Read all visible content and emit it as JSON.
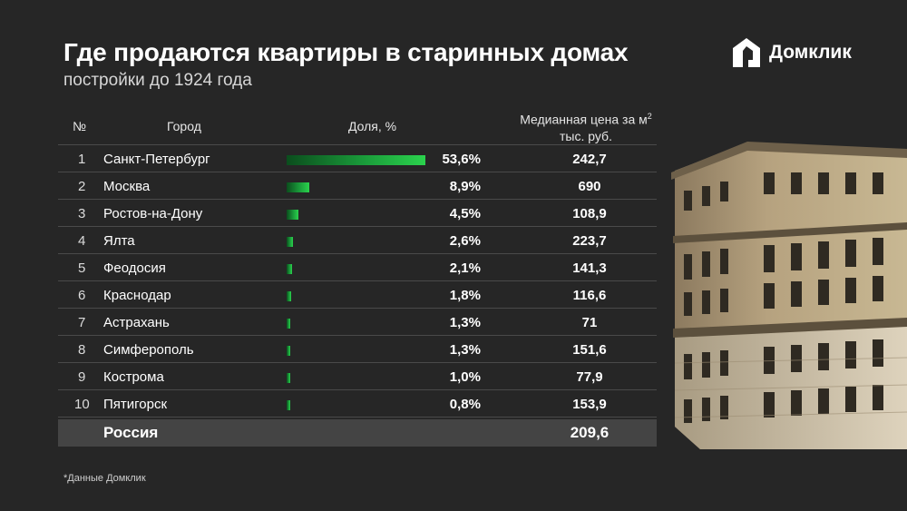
{
  "header": {
    "title": "Где продаются квартиры в старинных домах",
    "subtitle": "постройки до 1924 года"
  },
  "logo": {
    "text": "Домклик"
  },
  "table": {
    "columns": {
      "num": "№",
      "city": "Город",
      "share": "Доля, %",
      "price_line1": "Медианная цена за м",
      "price_sup": "2",
      "price_line2": "тыс. руб."
    },
    "total": {
      "label": "Россия",
      "price": "209,6"
    }
  },
  "chart_data": {
    "type": "table",
    "bar_max": 53.6,
    "rows": [
      {
        "num": "1",
        "city": "Санкт-Петербург",
        "share": 53.6,
        "share_label": "53,6%",
        "price": "242,7"
      },
      {
        "num": "2",
        "city": "Москва",
        "share": 8.9,
        "share_label": "8,9%",
        "price": "690"
      },
      {
        "num": "3",
        "city": "Ростов-на-Дону",
        "share": 4.5,
        "share_label": "4,5%",
        "price": "108,9"
      },
      {
        "num": "4",
        "city": "Ялта",
        "share": 2.6,
        "share_label": "2,6%",
        "price": "223,7"
      },
      {
        "num": "5",
        "city": "Феодосия",
        "share": 2.1,
        "share_label": "2,1%",
        "price": "141,3"
      },
      {
        "num": "6",
        "city": "Краснодар",
        "share": 1.8,
        "share_label": "1,8%",
        "price": "116,6"
      },
      {
        "num": "7",
        "city": "Астрахань",
        "share": 1.3,
        "share_label": "1,3%",
        "price": "71"
      },
      {
        "num": "8",
        "city": "Симферополь",
        "share": 1.3,
        "share_label": "1,3%",
        "price": "151,6"
      },
      {
        "num": "9",
        "city": "Кострома",
        "share": 1.0,
        "share_label": "1,0%",
        "price": "77,9"
      },
      {
        "num": "10",
        "city": "Пятигорск",
        "share": 0.8,
        "share_label": "0,8%",
        "price": "153,9"
      }
    ]
  },
  "footnote": "*Данные Домклик",
  "colors": {
    "background": "#262626",
    "bar_start": "#0b4d1d",
    "bar_end": "#2bd24d",
    "total_row": "#444444",
    "divider": "#4a4a4a"
  },
  "icons": {
    "logo": "house-logo-icon",
    "illustration": "old-building-illustration"
  }
}
